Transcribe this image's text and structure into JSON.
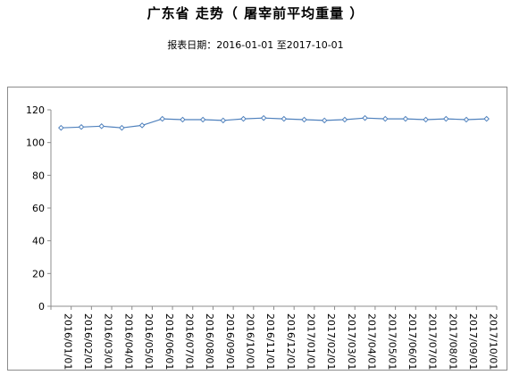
{
  "header": {
    "title": "广东省 走势（ 屠宰前平均重量 ）",
    "subtitle": "报表日期：2016-01-01 至2017-10-01"
  },
  "chart_data": {
    "type": "line",
    "categories": [
      "2016/01/01",
      "2016/02/01",
      "2016/03/01",
      "2016/04/01",
      "2016/05/01",
      "2016/06/01",
      "2016/07/01",
      "2016/08/01",
      "2016/09/01",
      "2016/10/01",
      "2016/11/01",
      "2016/12/01",
      "2017/01/01",
      "2017/02/01",
      "2017/03/01",
      "2017/04/01",
      "2017/05/01",
      "2017/06/01",
      "2017/07/01",
      "2017/08/01",
      "2017/09/01",
      "2017/10/01"
    ],
    "series": [
      {
        "values": [
          109,
          109.5,
          110,
          109,
          110.5,
          114.5,
          114,
          114,
          113.5,
          114.5,
          115,
          114.5,
          114,
          113.5,
          114,
          115,
          114.5,
          114.5,
          114,
          114.5,
          114,
          114.5
        ],
        "color": "#4f81bd"
      }
    ],
    "ylim": [
      0,
      120
    ],
    "yticks": [
      "0",
      "20",
      "40",
      "60",
      "80",
      "100",
      "120"
    ],
    "grid": false,
    "legend": "none"
  }
}
